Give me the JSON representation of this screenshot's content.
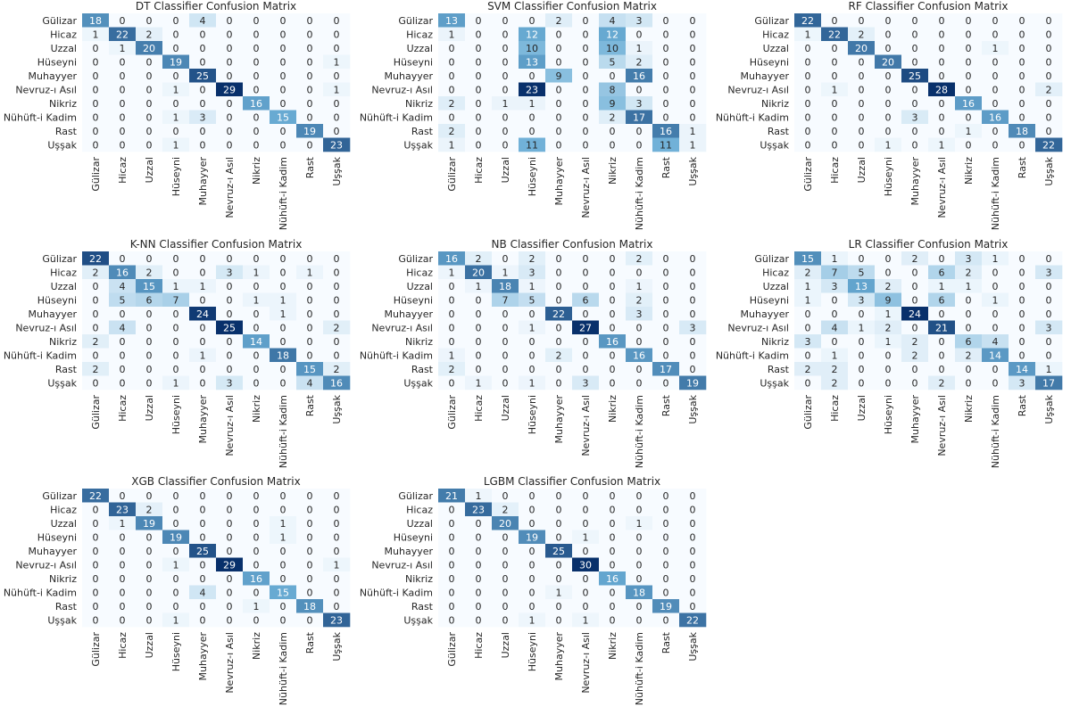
{
  "labels": [
    "Gülizar",
    "Hicaz",
    "Uzzal",
    "Hüseyni",
    "Muhayyer",
    "Nevruz-ı Asıl",
    "Nikriz",
    "Nühüft-i Kadim",
    "Rast",
    "Uşşak"
  ],
  "colors": {
    "cmap_low": "#f7fbff",
    "cmap_mid": "#6baed6",
    "cmap_high": "#08306b",
    "text_dark": "#262626",
    "text_light": "#ffffff"
  },
  "chart_data": [
    {
      "type": "heatmap",
      "title": "DT Classifier Confusion Matrix",
      "matrix": [
        [
          18,
          0,
          0,
          0,
          4,
          0,
          0,
          0,
          0,
          0
        ],
        [
          1,
          22,
          2,
          0,
          0,
          0,
          0,
          0,
          0,
          0
        ],
        [
          0,
          1,
          20,
          0,
          0,
          0,
          0,
          0,
          0,
          0
        ],
        [
          0,
          0,
          0,
          19,
          0,
          0,
          0,
          0,
          0,
          1
        ],
        [
          0,
          0,
          0,
          0,
          25,
          0,
          0,
          0,
          0,
          0
        ],
        [
          0,
          0,
          0,
          1,
          0,
          29,
          0,
          0,
          0,
          1
        ],
        [
          0,
          0,
          0,
          0,
          0,
          0,
          16,
          0,
          0,
          0
        ],
        [
          0,
          0,
          0,
          1,
          3,
          0,
          0,
          15,
          0,
          0
        ],
        [
          0,
          0,
          0,
          0,
          0,
          0,
          0,
          0,
          19,
          0
        ],
        [
          0,
          0,
          0,
          1,
          0,
          0,
          0,
          0,
          0,
          23
        ]
      ]
    },
    {
      "type": "heatmap",
      "title": "SVM Classifier Confusion Matrix",
      "matrix": [
        [
          13,
          0,
          0,
          0,
          2,
          0,
          4,
          3,
          0,
          0
        ],
        [
          1,
          0,
          0,
          12,
          0,
          0,
          12,
          0,
          0,
          0
        ],
        [
          0,
          0,
          0,
          10,
          0,
          0,
          10,
          1,
          0,
          0
        ],
        [
          0,
          0,
          0,
          13,
          0,
          0,
          5,
          2,
          0,
          0
        ],
        [
          0,
          0,
          0,
          0,
          9,
          0,
          0,
          16,
          0,
          0
        ],
        [
          0,
          0,
          0,
          23,
          0,
          0,
          8,
          0,
          0,
          0
        ],
        [
          2,
          0,
          1,
          1,
          0,
          0,
          9,
          3,
          0,
          0
        ],
        [
          0,
          0,
          0,
          0,
          0,
          0,
          2,
          17,
          0,
          0
        ],
        [
          2,
          0,
          0,
          0,
          0,
          0,
          0,
          0,
          16,
          1
        ],
        [
          1,
          0,
          0,
          11,
          0,
          0,
          0,
          0,
          11,
          1
        ]
      ]
    },
    {
      "type": "heatmap",
      "title": "RF Classifier Confusion Matrix",
      "matrix": [
        [
          22,
          0,
          0,
          0,
          0,
          0,
          0,
          0,
          0,
          0
        ],
        [
          1,
          22,
          2,
          0,
          0,
          0,
          0,
          0,
          0,
          0
        ],
        [
          0,
          0,
          20,
          0,
          0,
          0,
          0,
          1,
          0,
          0
        ],
        [
          0,
          0,
          0,
          20,
          0,
          0,
          0,
          0,
          0,
          0
        ],
        [
          0,
          0,
          0,
          0,
          25,
          0,
          0,
          0,
          0,
          0
        ],
        [
          0,
          1,
          0,
          0,
          0,
          28,
          0,
          0,
          0,
          2
        ],
        [
          0,
          0,
          0,
          0,
          0,
          0,
          16,
          0,
          0,
          0
        ],
        [
          0,
          0,
          0,
          0,
          3,
          0,
          0,
          16,
          0,
          0
        ],
        [
          0,
          0,
          0,
          0,
          0,
          0,
          1,
          0,
          18,
          0
        ],
        [
          0,
          0,
          0,
          1,
          0,
          1,
          0,
          0,
          0,
          22
        ]
      ]
    },
    {
      "type": "heatmap",
      "title": "K-NN Classifier Confusion Matrix",
      "matrix": [
        [
          22,
          0,
          0,
          0,
          0,
          0,
          0,
          0,
          0,
          0
        ],
        [
          2,
          16,
          2,
          0,
          0,
          3,
          1,
          0,
          1,
          0
        ],
        [
          0,
          4,
          15,
          1,
          1,
          0,
          0,
          0,
          0,
          0
        ],
        [
          0,
          5,
          6,
          7,
          0,
          0,
          1,
          1,
          0,
          0
        ],
        [
          0,
          0,
          0,
          0,
          24,
          0,
          0,
          1,
          0,
          0
        ],
        [
          0,
          4,
          0,
          0,
          0,
          25,
          0,
          0,
          0,
          2
        ],
        [
          2,
          0,
          0,
          0,
          0,
          0,
          14,
          0,
          0,
          0
        ],
        [
          0,
          0,
          0,
          0,
          1,
          0,
          0,
          18,
          0,
          0
        ],
        [
          2,
          0,
          0,
          0,
          0,
          0,
          0,
          0,
          15,
          2
        ],
        [
          0,
          0,
          0,
          1,
          0,
          3,
          0,
          0,
          4,
          16
        ]
      ]
    },
    {
      "type": "heatmap",
      "title": "NB Classifier Confusion Matrix",
      "matrix": [
        [
          16,
          2,
          0,
          2,
          0,
          0,
          0,
          2,
          0,
          0
        ],
        [
          1,
          20,
          1,
          3,
          0,
          0,
          0,
          0,
          0,
          0
        ],
        [
          0,
          1,
          18,
          1,
          0,
          0,
          0,
          1,
          0,
          0
        ],
        [
          0,
          0,
          7,
          5,
          0,
          6,
          0,
          2,
          0,
          0
        ],
        [
          0,
          0,
          0,
          0,
          22,
          0,
          0,
          3,
          0,
          0
        ],
        [
          0,
          0,
          0,
          1,
          0,
          27,
          0,
          0,
          0,
          3
        ],
        [
          0,
          0,
          0,
          0,
          0,
          0,
          16,
          0,
          0,
          0
        ],
        [
          1,
          0,
          0,
          0,
          2,
          0,
          0,
          16,
          0,
          0
        ],
        [
          2,
          0,
          0,
          0,
          0,
          0,
          0,
          0,
          17,
          0
        ],
        [
          0,
          1,
          0,
          1,
          0,
          3,
          0,
          0,
          0,
          19
        ]
      ]
    },
    {
      "type": "heatmap",
      "title": "LR Classifier Confusion Matrix",
      "matrix": [
        [
          15,
          1,
          0,
          0,
          2,
          0,
          3,
          1,
          0,
          0
        ],
        [
          2,
          7,
          5,
          0,
          0,
          6,
          2,
          0,
          0,
          3
        ],
        [
          1,
          3,
          13,
          2,
          0,
          1,
          1,
          0,
          0,
          0
        ],
        [
          1,
          0,
          3,
          9,
          0,
          6,
          0,
          1,
          0,
          0
        ],
        [
          0,
          0,
          0,
          1,
          24,
          0,
          0,
          0,
          0,
          0
        ],
        [
          0,
          4,
          1,
          2,
          0,
          21,
          0,
          0,
          0,
          3
        ],
        [
          3,
          0,
          0,
          1,
          2,
          0,
          6,
          4,
          0,
          0
        ],
        [
          0,
          1,
          0,
          0,
          2,
          0,
          2,
          14,
          0,
          0
        ],
        [
          2,
          2,
          0,
          0,
          0,
          0,
          0,
          0,
          14,
          1
        ],
        [
          0,
          2,
          0,
          0,
          0,
          2,
          0,
          0,
          3,
          17
        ]
      ]
    },
    {
      "type": "heatmap",
      "title": "XGB Classifier Confusion Matrix",
      "matrix": [
        [
          22,
          0,
          0,
          0,
          0,
          0,
          0,
          0,
          0,
          0
        ],
        [
          0,
          23,
          2,
          0,
          0,
          0,
          0,
          0,
          0,
          0
        ],
        [
          0,
          1,
          19,
          0,
          0,
          0,
          0,
          1,
          0,
          0
        ],
        [
          0,
          0,
          0,
          19,
          0,
          0,
          0,
          1,
          0,
          0
        ],
        [
          0,
          0,
          0,
          0,
          25,
          0,
          0,
          0,
          0,
          0
        ],
        [
          0,
          0,
          0,
          1,
          0,
          29,
          0,
          0,
          0,
          1
        ],
        [
          0,
          0,
          0,
          0,
          0,
          0,
          16,
          0,
          0,
          0
        ],
        [
          0,
          0,
          0,
          0,
          4,
          0,
          0,
          15,
          0,
          0
        ],
        [
          0,
          0,
          0,
          0,
          0,
          0,
          1,
          0,
          18,
          0
        ],
        [
          0,
          0,
          0,
          1,
          0,
          0,
          0,
          0,
          0,
          23
        ]
      ]
    },
    {
      "type": "heatmap",
      "title": "LGBM Classifier Confusion Matrix",
      "matrix": [
        [
          21,
          1,
          0,
          0,
          0,
          0,
          0,
          0,
          0,
          0
        ],
        [
          0,
          23,
          2,
          0,
          0,
          0,
          0,
          0,
          0,
          0
        ],
        [
          0,
          0,
          20,
          0,
          0,
          0,
          0,
          1,
          0,
          0
        ],
        [
          0,
          0,
          0,
          19,
          0,
          1,
          0,
          0,
          0,
          0
        ],
        [
          0,
          0,
          0,
          0,
          25,
          0,
          0,
          0,
          0,
          0
        ],
        [
          0,
          0,
          0,
          0,
          0,
          30,
          0,
          0,
          0,
          0
        ],
        [
          0,
          0,
          0,
          0,
          0,
          0,
          16,
          0,
          0,
          0
        ],
        [
          0,
          0,
          0,
          0,
          1,
          0,
          0,
          18,
          0,
          0
        ],
        [
          0,
          0,
          0,
          0,
          0,
          0,
          0,
          0,
          19,
          0
        ],
        [
          0,
          0,
          0,
          1,
          0,
          1,
          0,
          0,
          0,
          22
        ]
      ]
    }
  ]
}
